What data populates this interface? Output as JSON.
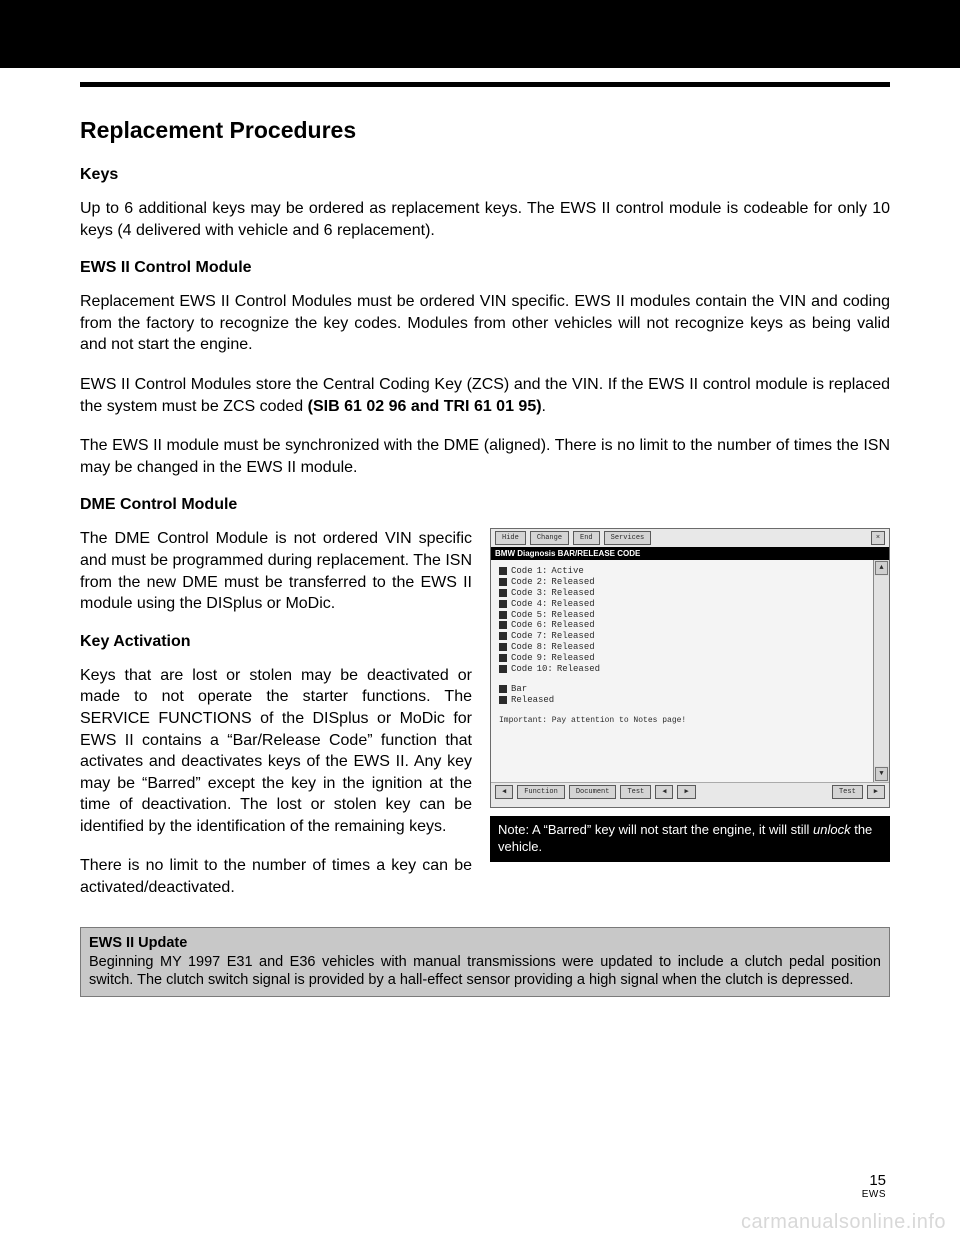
{
  "header": {
    "title": "Replacement Procedures"
  },
  "sections": {
    "keys": {
      "heading": "Keys",
      "p1": "Up to 6 additional keys may be ordered as replacement keys. The EWS II control module is codeable for only 10 keys (4 delivered with vehicle and 6 replacement)."
    },
    "ews_module": {
      "heading": "EWS II Control Module",
      "p1": "Replacement EWS II Control Modules must be ordered VIN specific.  EWS II modules contain the VIN and coding from the factory to recognize the key codes. Modules from other vehicles will not recognize keys as being valid and not start the engine.",
      "p2a": "EWS II Control Modules store the Central Coding Key (ZCS) and the VIN. If the EWS II control module is replaced the system must be ZCS coded ",
      "p2b": "(SIB 61 02 96 and TRI 61 01 95)",
      "p2c": ".",
      "p3": "The EWS II module must be synchronized with the DME (aligned). There is no limit to the number of times the ISN may be changed in the EWS II module."
    },
    "dme": {
      "heading": "DME Control Module",
      "p1": "The DME Control Module is not ordered VIN specific and must be programmed during replacement. The ISN from the new DME must be transferred to the EWS II module using the DISplus or MoDic."
    },
    "key_activation": {
      "heading": "Key Activation",
      "p1": "Keys that are lost or stolen may be deactivated or made to not operate the starter functions.  The SERVICE FUNCTIONS of the DISplus or MoDic for EWS II contains a “Bar/Release Code” function that activates and deactivates keys of the EWS II.  Any key may be “Barred” except the key in the ignition at the time of deactivation. The lost or stolen key can be identified by the identification of the remaining keys.",
      "p2": "There is no limit to the number of times a key can be activated/deactivated."
    }
  },
  "screenshot": {
    "topbar": {
      "b1": "Hide",
      "b2": "Change",
      "b3": "End",
      "b4": "Services"
    },
    "title": "BMW Diagnosis BAR/RELEASE CODE",
    "codes": [
      {
        "label": "Code",
        "n": "1:",
        "status": "Active"
      },
      {
        "label": "Code",
        "n": "2:",
        "status": "Released"
      },
      {
        "label": "Code",
        "n": "3:",
        "status": "Released"
      },
      {
        "label": "Code",
        "n": "4:",
        "status": "Released"
      },
      {
        "label": "Code",
        "n": "5:",
        "status": "Released"
      },
      {
        "label": "Code",
        "n": "6:",
        "status": "Released"
      },
      {
        "label": "Code",
        "n": "7:",
        "status": "Released"
      },
      {
        "label": "Code",
        "n": "8:",
        "status": "Released"
      },
      {
        "label": "Code",
        "n": "9:",
        "status": "Released"
      },
      {
        "label": "Code",
        "n": "10:",
        "status": "Released"
      }
    ],
    "legend": {
      "bar": "Bar",
      "released": "Released"
    },
    "important": "Important: Pay attention to Notes page!",
    "bottombar": {
      "b1": "Function",
      "b2": "Document",
      "b3": "Test",
      "b4": "Test"
    },
    "arrows": {
      "up": "▲",
      "down": "▼",
      "left": "◀",
      "right": "▶"
    }
  },
  "caption": {
    "prefix": "Note: A “Barred” key will not start the engine, it will still ",
    "em": "unlock",
    "suffix": " the vehicle."
  },
  "update": {
    "lead": "EWS II Update",
    "body": "Beginning MY 1997 E31 and E36 vehicles with manual transmissions were updated to include a clutch pedal position switch.  The clutch switch signal is provided by a hall-effect sensor providing a high signal when the clutch is depressed."
  },
  "footer": {
    "page_number": "15",
    "system": "EWS"
  },
  "watermark": "carmanualsonline.info"
}
